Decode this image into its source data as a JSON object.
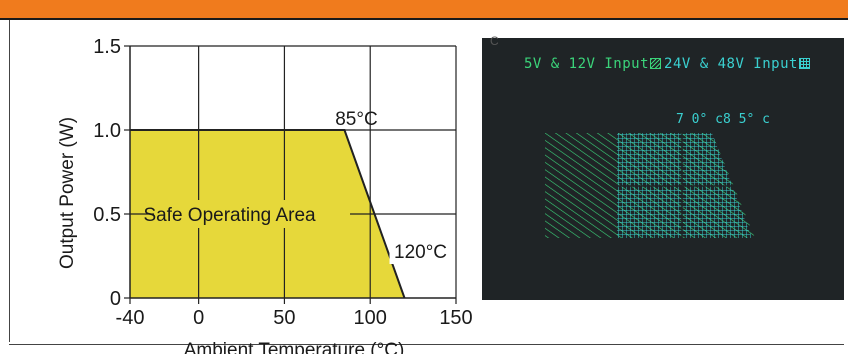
{
  "chart_data": {
    "type": "area",
    "title": "",
    "xlabel": "Ambient Temperature (°C)",
    "ylabel": "Output Power (W)",
    "xlim": [
      -40,
      150
    ],
    "ylim": [
      0,
      1.5
    ],
    "x_ticks": [
      "-40",
      "0",
      "50",
      "100",
      "150"
    ],
    "y_ticks": [
      "0",
      "0.5",
      "1.0",
      "1.5"
    ],
    "x_tick_values": [
      -40,
      0,
      50,
      100,
      150
    ],
    "y_tick_values": [
      0,
      0.5,
      1.0,
      1.5
    ],
    "grid": true,
    "series": [
      {
        "name": "Safe Operating Area",
        "x": [
          -40,
          85,
          120
        ],
        "y": [
          1.0,
          1.0,
          0
        ]
      }
    ],
    "fill_color": "#e6d83a",
    "annotations": [
      {
        "text": "85°C",
        "x": 85,
        "y": 1.0
      },
      {
        "text": "120°C",
        "x": 120,
        "y": 0.25
      },
      {
        "text": "Safe Operating Area",
        "x": 25,
        "y": 0.5
      }
    ]
  },
  "panel": {
    "legend_1": "5V & 12V Input",
    "legend_2": "24V & 48V Input",
    "temps": "7 0°  c8 5°  c",
    "ghost_mark": "C",
    "colors": {
      "green": "#3bd47a",
      "cyan": "#3ad0d0",
      "background": "#1f2426"
    }
  }
}
